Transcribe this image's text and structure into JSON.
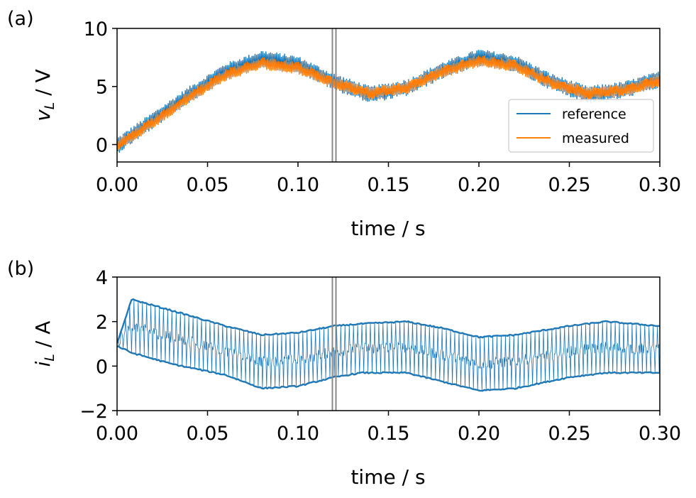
{
  "chart_data": [
    {
      "panel_label": "(a)",
      "type": "line",
      "xlabel": "time / s",
      "ylabel_main": "v",
      "ylabel_sub": "L",
      "ylabel_unit": " / V",
      "xlim": [
        0.0,
        0.3
      ],
      "ylim": [
        -1.5,
        10
      ],
      "xticks": [
        0.0,
        0.05,
        0.1,
        0.15,
        0.2,
        0.25,
        0.3
      ],
      "xtick_labels": [
        "0.00",
        "0.05",
        "0.10",
        "0.15",
        "0.20",
        "0.25",
        "0.30"
      ],
      "yticks": [
        0,
        5,
        10
      ],
      "ytick_labels": [
        "0",
        "5",
        "10"
      ],
      "marker_time": 0.12,
      "legend_position": "lower-right",
      "series": [
        {
          "name": "reference",
          "color": "#1f77b4",
          "x": [
            0.0,
            0.02,
            0.04,
            0.06,
            0.08,
            0.1,
            0.12,
            0.14,
            0.16,
            0.18,
            0.2,
            0.22,
            0.24,
            0.26,
            0.28,
            0.3
          ],
          "values": [
            -0.1,
            2.1,
            4.3,
            6.3,
            7.4,
            6.9,
            5.4,
            4.3,
            4.9,
            6.4,
            7.5,
            7.0,
            5.4,
            4.3,
            4.7,
            5.6
          ],
          "band": 0.75
        },
        {
          "name": "measured",
          "color": "#ff7f0e",
          "x": [
            0.0,
            0.02,
            0.04,
            0.06,
            0.08,
            0.1,
            0.12,
            0.14,
            0.16,
            0.18,
            0.2,
            0.22,
            0.24,
            0.26,
            0.28,
            0.3
          ],
          "values": [
            -0.1,
            1.9,
            4.1,
            6.0,
            7.0,
            6.6,
            5.3,
            4.4,
            4.9,
            6.3,
            7.2,
            6.8,
            5.3,
            4.4,
            4.7,
            5.5
          ],
          "band": 0.55
        }
      ]
    },
    {
      "panel_label": "(b)",
      "type": "line",
      "xlabel": "time / s",
      "ylabel_main": "i",
      "ylabel_sub": "L",
      "ylabel_unit": " / A",
      "xlim": [
        0.0,
        0.3
      ],
      "ylim": [
        -2,
        4
      ],
      "xticks": [
        0.0,
        0.05,
        0.1,
        0.15,
        0.2,
        0.25,
        0.3
      ],
      "xtick_labels": [
        "0.00",
        "0.05",
        "0.10",
        "0.15",
        "0.20",
        "0.25",
        "0.30"
      ],
      "yticks": [
        -2,
        0,
        2,
        4
      ],
      "ytick_labels": [
        "−2",
        "0",
        "2",
        "4"
      ],
      "marker_time": 0.12,
      "series": [
        {
          "name": "i_L",
          "color": "#1f77b4",
          "x": [
            0.0,
            0.008,
            0.03,
            0.06,
            0.08,
            0.1,
            0.12,
            0.135,
            0.16,
            0.18,
            0.2,
            0.22,
            0.25,
            0.27,
            0.3
          ],
          "upper": [
            1.0,
            3.0,
            2.5,
            1.8,
            1.4,
            1.5,
            1.8,
            1.9,
            2.0,
            1.7,
            1.3,
            1.4,
            1.8,
            2.0,
            1.8
          ],
          "lower": [
            0.9,
            0.6,
            0.1,
            -0.4,
            -1.0,
            -0.9,
            -0.5,
            -0.3,
            -0.3,
            -0.7,
            -1.1,
            -1.0,
            -0.5,
            -0.3,
            -0.3
          ]
        }
      ]
    }
  ]
}
